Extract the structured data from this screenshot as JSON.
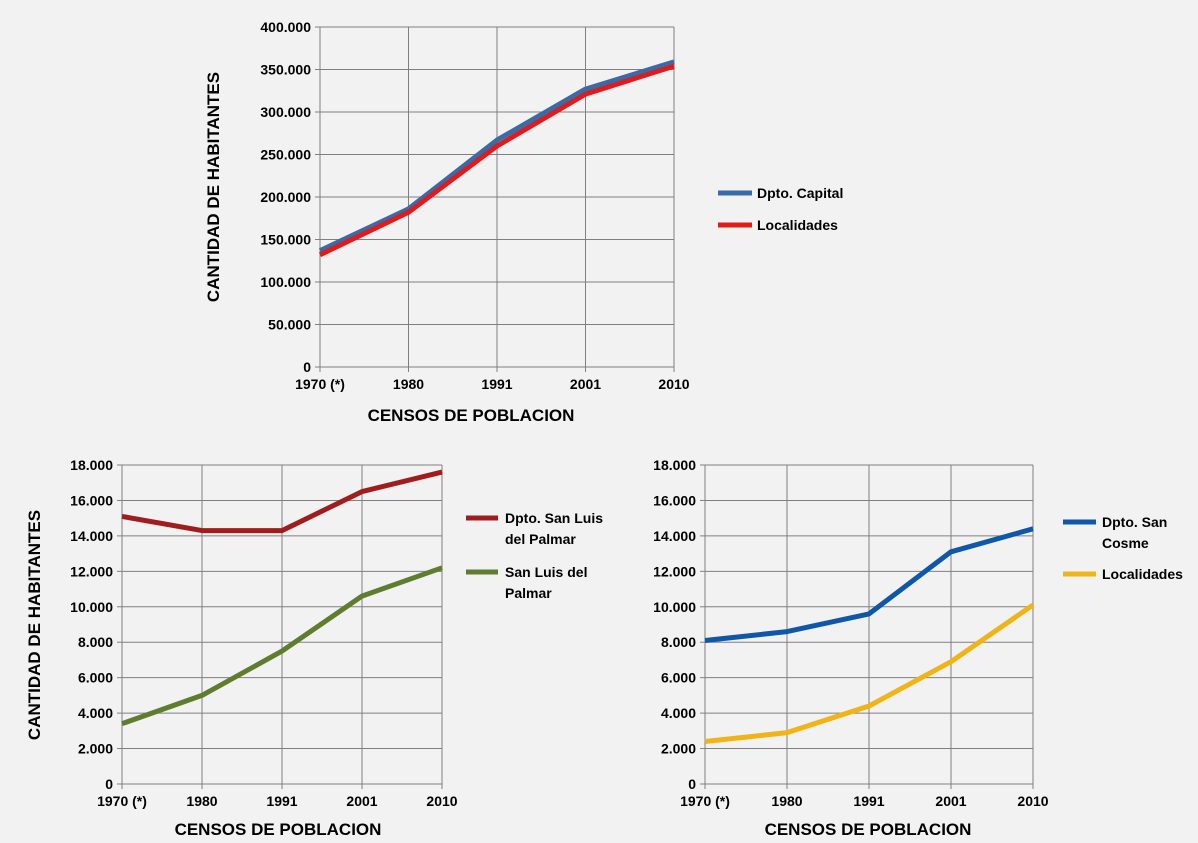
{
  "chart_data": [
    {
      "type": "line",
      "id": "capital",
      "categories": [
        "1970 (*)",
        "1980",
        "1991",
        "2001",
        "2010"
      ],
      "series": [
        {
          "name": "Dpto. Capital",
          "values": [
            137000,
            186000,
            267000,
            327000,
            359000
          ]
        },
        {
          "name": "Localidades",
          "values": [
            132000,
            182000,
            260000,
            321000,
            354000
          ]
        }
      ],
      "ylim": [
        0,
        400000
      ],
      "yticks": [
        0,
        50000,
        100000,
        150000,
        200000,
        250000,
        300000,
        350000,
        400000
      ],
      "ytick_labels": [
        "0",
        "50.000",
        "100.000",
        "150.000",
        "200.000",
        "250.000",
        "300.000",
        "350.000",
        "400.000"
      ],
      "xlabel": "CENSOS DE POBLACION",
      "ylabel": "CANTIDAD DE HABITANTES",
      "grid": true,
      "legend_position": "right"
    },
    {
      "type": "line",
      "id": "sanluis",
      "categories": [
        "1970 (*)",
        "1980",
        "1991",
        "2001",
        "2010"
      ],
      "series": [
        {
          "name": "Dpto. San Luis del Palmar",
          "values": [
            15100,
            14300,
            14300,
            16500,
            17600
          ]
        },
        {
          "name": "San Luis del Palmar",
          "values": [
            3400,
            5000,
            7500,
            10600,
            12200
          ]
        }
      ],
      "ylim": [
        0,
        18000
      ],
      "yticks": [
        0,
        2000,
        4000,
        6000,
        8000,
        10000,
        12000,
        14000,
        16000,
        18000
      ],
      "ytick_labels": [
        "0",
        "2.000",
        "4.000",
        "6.000",
        "8.000",
        "10.000",
        "12.000",
        "14.000",
        "16.000",
        "18.000"
      ],
      "xlabel": "CENSOS DE POBLACION",
      "ylabel": "CANTIDAD DE HABITANTES",
      "grid": true,
      "legend_position": "right"
    },
    {
      "type": "line",
      "id": "sancosme",
      "categories": [
        "1970 (*)",
        "1980",
        "1991",
        "2001",
        "2010"
      ],
      "series": [
        {
          "name": "Dpto. San Cosme",
          "values": [
            8100,
            8600,
            9600,
            13100,
            14400
          ]
        },
        {
          "name": "Localidades",
          "values": [
            2400,
            2900,
            4400,
            6900,
            10100
          ]
        }
      ],
      "ylim": [
        0,
        18000
      ],
      "yticks": [
        0,
        2000,
        4000,
        6000,
        8000,
        10000,
        12000,
        14000,
        16000,
        18000
      ],
      "ytick_labels": [
        "0",
        "2.000",
        "4.000",
        "6.000",
        "8.000",
        "10.000",
        "12.000",
        "14.000",
        "16.000",
        "18.000"
      ],
      "xlabel": "CENSOS DE POBLACION",
      "ylabel": "",
      "grid": true,
      "legend_position": "right"
    }
  ],
  "legends": {
    "capital": [
      {
        "label": "Dpto. Capital",
        "color": "#3a6aa8"
      },
      {
        "label": "Localidades",
        "color": "#e01b1b"
      }
    ],
    "sanluis": [
      {
        "label": "Dpto. San Luis",
        "label2": "del Palmar",
        "color": "#a11d1d"
      },
      {
        "label": "San Luis del",
        "label2": "Palmar",
        "color": "#5f7d2f"
      }
    ],
    "sancosme": [
      {
        "label": "Dpto. San",
        "label2": "Cosme",
        "color": "#0f57a8"
      },
      {
        "label": "Localidades",
        "color": "#f0b416"
      }
    ]
  },
  "colors": {
    "capital": [
      "#3a6aa8",
      "#e01b1b"
    ],
    "sanluis": [
      "#a11d1d",
      "#5f7d2f"
    ],
    "sancosme": [
      "#0f57a8",
      "#f0b416"
    ],
    "grid": "#808080",
    "background": "#f2f2f2"
  }
}
